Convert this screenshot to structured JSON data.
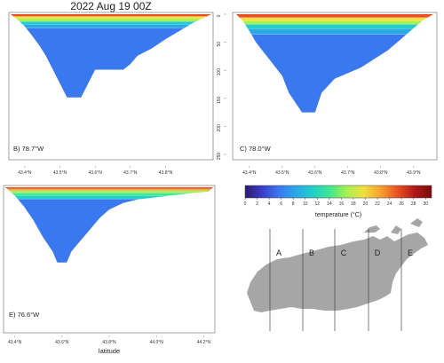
{
  "figure": {
    "title": "2022 Aug 19 00Z",
    "xlabel": "latitude"
  },
  "chart_data": [
    {
      "type": "heatmap",
      "name": "transect-b",
      "label": "B) 78.7°W",
      "x_unit": "degrees latitude N",
      "y_unit": "depth (m)",
      "xlim": [
        43.36,
        43.93
      ],
      "ylim": [
        0,
        160
      ],
      "xticks": [
        "43.4°N",
        "43.5°N",
        "43.6°N",
        "43.7°N",
        "43.8°N"
      ],
      "xtick_values": [
        43.4,
        43.5,
        43.6,
        43.7,
        43.8
      ],
      "bottom_profile": [
        [
          43.36,
          0
        ],
        [
          43.38,
          10
        ],
        [
          43.4,
          22
        ],
        [
          43.42,
          38
        ],
        [
          43.44,
          55
        ],
        [
          43.46,
          75
        ],
        [
          43.48,
          100
        ],
        [
          43.5,
          125
        ],
        [
          43.52,
          150
        ],
        [
          43.56,
          150
        ],
        [
          43.58,
          125
        ],
        [
          43.6,
          100
        ],
        [
          43.64,
          100
        ],
        [
          43.68,
          100
        ],
        [
          43.7,
          90
        ],
        [
          43.72,
          75
        ],
        [
          43.76,
          62
        ],
        [
          43.8,
          45
        ],
        [
          43.84,
          30
        ],
        [
          43.88,
          15
        ],
        [
          43.93,
          0
        ]
      ],
      "temperature_layers": [
        {
          "depth": [
            0,
            4
          ],
          "temp_c": 24
        },
        {
          "depth": [
            4,
            8
          ],
          "temp_c": 20
        },
        {
          "depth": [
            8,
            13
          ],
          "temp_c": 16
        },
        {
          "depth": [
            13,
            18
          ],
          "temp_c": 12
        },
        {
          "depth": [
            18,
            25
          ],
          "temp_c": 8
        },
        {
          "depth": [
            25,
            160
          ],
          "temp_c": 5
        }
      ]
    },
    {
      "type": "heatmap",
      "name": "transect-c",
      "label": "C) 78.0°W",
      "x_unit": "degrees latitude N",
      "y_unit": "depth (m)",
      "xlim": [
        43.36,
        43.96
      ],
      "ylim": [
        0,
        250
      ],
      "xticks": [
        "43.4°N",
        "43.5°N",
        "43.6°N",
        "43.7°N",
        "43.8°N",
        "43.9°N"
      ],
      "xtick_values": [
        43.4,
        43.5,
        43.6,
        43.7,
        43.8,
        43.9
      ],
      "yticks": [
        "0",
        "50",
        "100",
        "150",
        "200",
        "250"
      ],
      "ytick_values": [
        0,
        50,
        100,
        150,
        200,
        250
      ],
      "bottom_profile": [
        [
          43.36,
          0
        ],
        [
          43.38,
          12
        ],
        [
          43.4,
          30
        ],
        [
          43.42,
          50
        ],
        [
          43.44,
          65
        ],
        [
          43.46,
          80
        ],
        [
          43.48,
          95
        ],
        [
          43.5,
          110
        ],
        [
          43.52,
          140
        ],
        [
          43.56,
          175
        ],
        [
          43.6,
          175
        ],
        [
          43.62,
          140
        ],
        [
          43.66,
          115
        ],
        [
          43.7,
          105
        ],
        [
          43.74,
          95
        ],
        [
          43.78,
          80
        ],
        [
          43.82,
          65
        ],
        [
          43.86,
          45
        ],
        [
          43.9,
          25
        ],
        [
          43.93,
          10
        ],
        [
          43.96,
          0
        ]
      ],
      "temperature_layers": [
        {
          "depth": [
            0,
            6
          ],
          "temp_c": 24
        },
        {
          "depth": [
            6,
            12
          ],
          "temp_c": 20
        },
        {
          "depth": [
            12,
            18
          ],
          "temp_c": 16
        },
        {
          "depth": [
            18,
            26
          ],
          "temp_c": 12
        },
        {
          "depth": [
            26,
            36
          ],
          "temp_c": 8
        },
        {
          "depth": [
            36,
            250
          ],
          "temp_c": 5
        }
      ]
    },
    {
      "type": "heatmap",
      "name": "transect-e",
      "label": "E) 76.6°W",
      "x_unit": "degrees latitude N",
      "y_unit": "depth (m)",
      "xlim": [
        43.36,
        44.24
      ],
      "ylim": [
        0,
        180
      ],
      "xticks": [
        "43.4°N",
        "43.6°N",
        "43.8°N",
        "44.0°N",
        "44.2°N"
      ],
      "xtick_values": [
        43.4,
        43.6,
        43.8,
        44.0,
        44.2
      ],
      "bottom_profile": [
        [
          43.36,
          0
        ],
        [
          43.4,
          15
        ],
        [
          43.44,
          35
        ],
        [
          43.48,
          60
        ],
        [
          43.52,
          90
        ],
        [
          43.56,
          115
        ],
        [
          43.58,
          135
        ],
        [
          43.62,
          135
        ],
        [
          43.64,
          115
        ],
        [
          43.68,
          95
        ],
        [
          43.72,
          75
        ],
        [
          43.76,
          55
        ],
        [
          43.8,
          40
        ],
        [
          43.86,
          28
        ],
        [
          43.92,
          22
        ],
        [
          44.0,
          18
        ],
        [
          44.08,
          14
        ],
        [
          44.16,
          10
        ],
        [
          44.22,
          8
        ],
        [
          44.24,
          0
        ]
      ],
      "temperature_layers": [
        {
          "depth": [
            0,
            3
          ],
          "temp_c": 26
        },
        {
          "depth": [
            3,
            6
          ],
          "temp_c": 22
        },
        {
          "depth": [
            6,
            10
          ],
          "temp_c": 18
        },
        {
          "depth": [
            10,
            15
          ],
          "temp_c": 14
        },
        {
          "depth": [
            15,
            21
          ],
          "temp_c": 10
        },
        {
          "depth": [
            21,
            180
          ],
          "temp_c": 5
        }
      ]
    }
  ],
  "colorbar": {
    "label": "temperature (°C)",
    "min": 0,
    "max": 31,
    "ticks": [
      "0",
      "2",
      "4",
      "6",
      "8",
      "10",
      "12",
      "14",
      "16",
      "18",
      "20",
      "22",
      "24",
      "26",
      "28",
      "30"
    ],
    "tick_values": [
      0,
      2,
      4,
      6,
      8,
      10,
      12,
      14,
      16,
      18,
      20,
      22,
      24,
      26,
      28,
      30
    ],
    "colors": [
      "#2e1a6b",
      "#3a3cc8",
      "#3a78f0",
      "#2aa8e8",
      "#20d0c8",
      "#40e890",
      "#a8f050",
      "#f0e040",
      "#f8a030",
      "#e85020",
      "#b01818",
      "#7a0a0a"
    ]
  },
  "map": {
    "transect_labels": [
      "A",
      "B",
      "C",
      "D",
      "E"
    ],
    "land_color": "#a6a6a6"
  }
}
